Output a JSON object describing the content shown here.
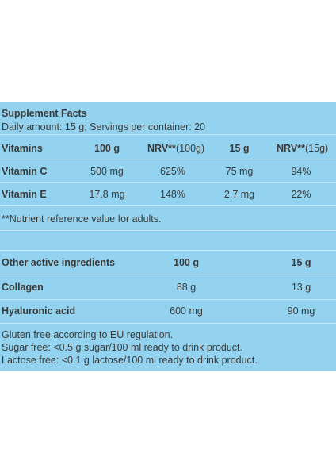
{
  "title": "Supplement Facts",
  "subtitle": "Daily amount: 15 g; Servings per container: 20",
  "vitamins_table": {
    "header": {
      "label": "Vitamins",
      "col1": "100 g",
      "col2_bold": "NRV**",
      "col2_rest": "(100g)",
      "col3": "15 g",
      "col4_bold": "NRV**",
      "col4_rest": "(15g)"
    },
    "rows": [
      [
        "Vitamin C",
        "500 mg",
        "625%",
        "75 mg",
        "94%"
      ],
      [
        "Vitamin E",
        "17.8 mg",
        "148%",
        "2.7 mg",
        "22%"
      ]
    ],
    "footnote": "**Nutrient reference value for adults."
  },
  "ingredients_table": {
    "header": [
      "Other active ingredients",
      "100 g",
      "15 g"
    ],
    "rows": [
      [
        "Collagen",
        "88 g",
        "13 g"
      ],
      [
        "Hyaluronic acid",
        "600 mg",
        "90 mg"
      ]
    ]
  },
  "notes": [
    "Gluten free according to EU regulation.",
    "Sugar free: <0.5 g sugar/100 ml ready to drink product.",
    "Lactose free: <0.1 g lactose/100 ml ready to drink product."
  ]
}
